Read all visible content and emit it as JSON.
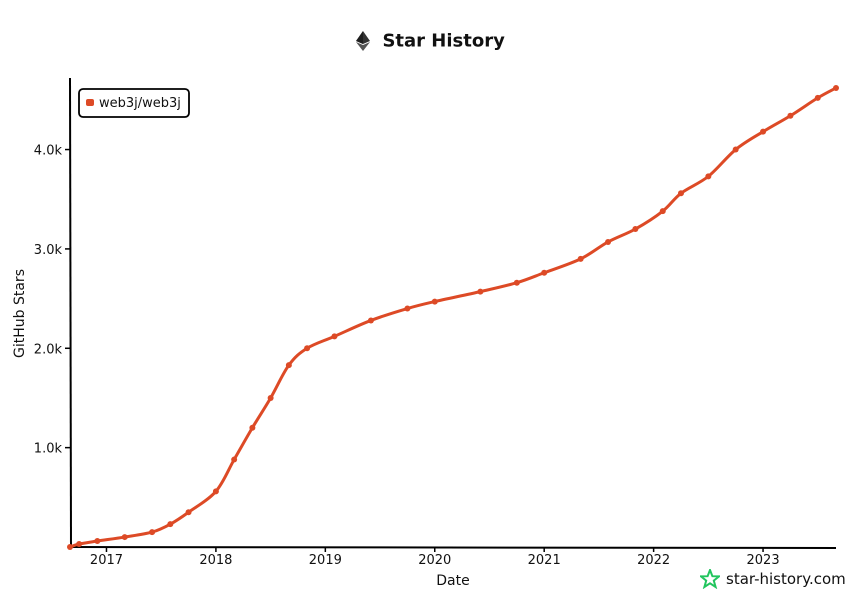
{
  "header": {
    "title": "Star History",
    "logo_icon": "ethereum-icon"
  },
  "brand": {
    "text": "star-history.com",
    "icon": "star-history-logo-icon",
    "color": "#22c55e"
  },
  "chart_data": {
    "type": "line",
    "xlabel": "Date",
    "ylabel": "GitHub Stars",
    "x_ticks": [
      "2017",
      "2018",
      "2019",
      "2020",
      "2021",
      "2022",
      "2023"
    ],
    "y_ticks": [
      "1.0k",
      "2.0k",
      "3.0k",
      "4.0k"
    ],
    "y_tick_values": [
      1000,
      2000,
      3000,
      4000
    ],
    "xlim": [
      "2016-09",
      "2023-09"
    ],
    "ylim": [
      0,
      4700
    ],
    "legend": {
      "position": "top-left"
    },
    "grid": false,
    "series": [
      {
        "name": "web3j/web3j",
        "color": "#dd4a26",
        "x": [
          "2016-09",
          "2016-10",
          "2016-12",
          "2017-03",
          "2017-06",
          "2017-08",
          "2017-10",
          "2018-01",
          "2018-03",
          "2018-05",
          "2018-07",
          "2018-09",
          "2018-11",
          "2019-02",
          "2019-06",
          "2019-10",
          "2020-01",
          "2020-06",
          "2020-10",
          "2021-01",
          "2021-05",
          "2021-08",
          "2021-11",
          "2022-02",
          "2022-04",
          "2022-07",
          "2022-10",
          "2023-01",
          "2023-04",
          "2023-07",
          "2023-09"
        ],
        "values": [
          0,
          30,
          60,
          100,
          150,
          230,
          350,
          560,
          880,
          1200,
          1500,
          1830,
          2000,
          2120,
          2280,
          2400,
          2470,
          2570,
          2660,
          2760,
          2900,
          3070,
          3200,
          3380,
          3560,
          3730,
          4000,
          4180,
          4340,
          4520,
          4620
        ]
      }
    ]
  }
}
